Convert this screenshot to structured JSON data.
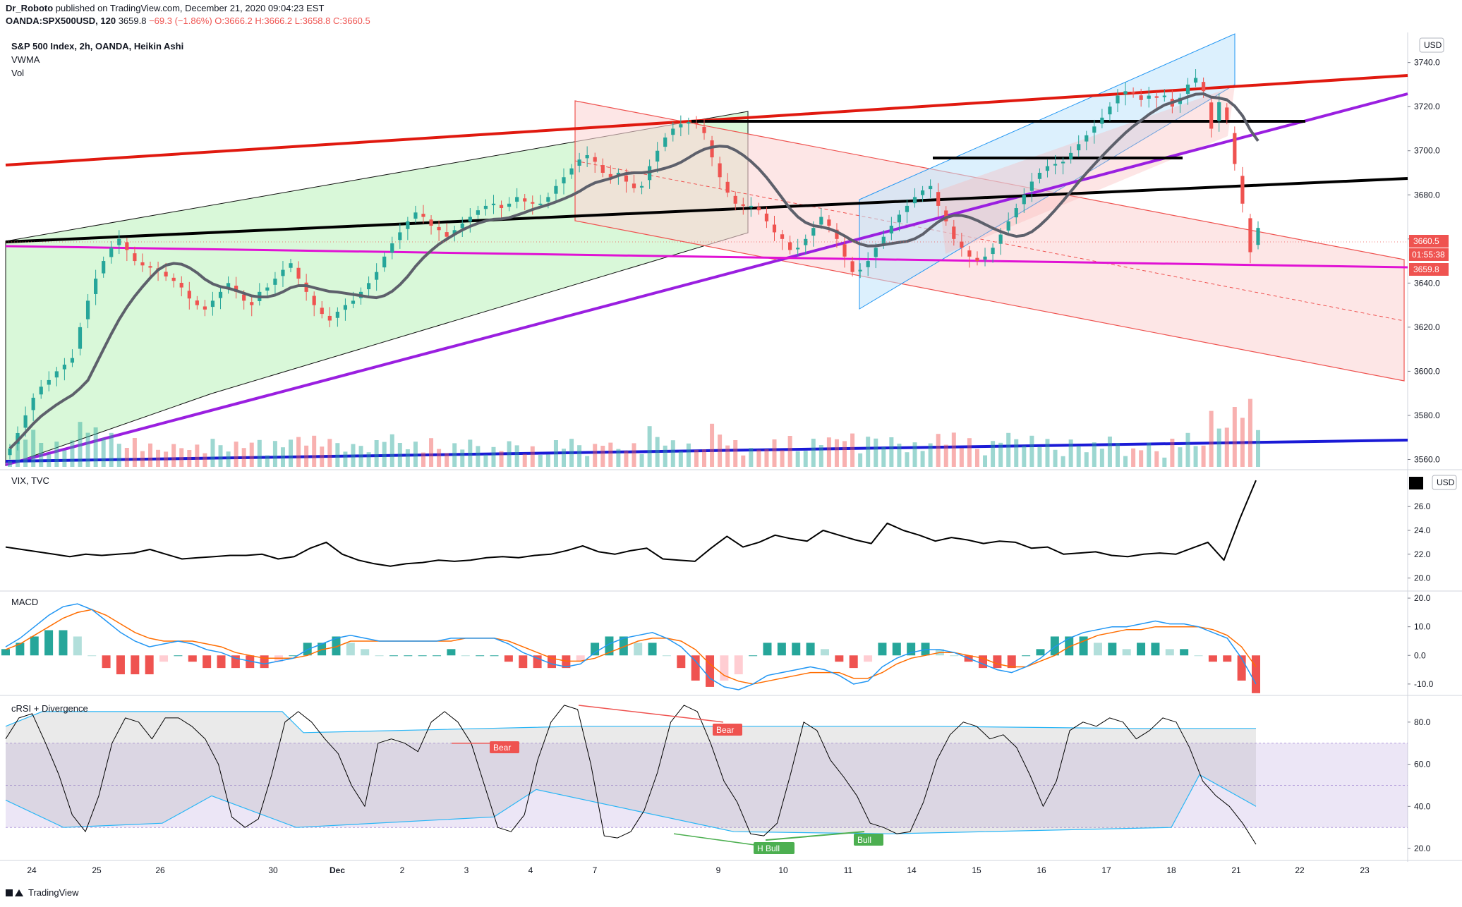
{
  "header": {
    "author": "Dr_Roboto",
    "published": "published on TradingView.com, December 21, 2020 09:04:23 EST",
    "symbol": "OANDA:SPX500USD, 120",
    "price": "3659.8",
    "ohlc": "−69.3 (−1.86%) O:3666.2 H:3666.2 L:3658.8 C:3660.5"
  },
  "main_pane": {
    "title": "S&P 500 Index, 2h, OANDA, Heikin Ashi",
    "indicator1": "VWMA",
    "indicator2": "Vol",
    "currency": "USD",
    "price_label": "3660.5",
    "countdown_label": "01:55:38",
    "level_label": "3659.8"
  },
  "vix_pane": {
    "title": "VIX, TVC",
    "currency": "USD"
  },
  "macd_pane": {
    "title": "MACD"
  },
  "crsi_pane": {
    "title": "cRSI + Divergence",
    "badges": [
      "Bear",
      "Bear",
      "H Bull",
      "Bull"
    ]
  },
  "footer": {
    "brand": "TradingView"
  },
  "colors": {
    "bull": "#26a69a",
    "bear": "#ef5350",
    "vwma": "#5d606b",
    "trend_red": "#e0190f",
    "trend_purple": "#9a1fe0",
    "trend_magenta": "#e012d4",
    "trend_blue": "#1a1ad6",
    "macd_line": "#2196f3",
    "signal_line": "#ff6d00",
    "crsi_band": "#b39ddb"
  },
  "chart_data": [
    {
      "type": "candlestick",
      "title": "S&P 500 Index, 2h, OANDA, Heikin Ashi",
      "x_ticks": [
        "24",
        "25",
        "26",
        "30",
        "Dec",
        "2",
        "3",
        "4",
        "7",
        "9",
        "10",
        "11",
        "14",
        "15",
        "16",
        "17",
        "18",
        "21",
        "22",
        "23"
      ],
      "y_ticks": [
        3560,
        3580,
        3600,
        3620,
        3640,
        3660,
        3680,
        3700,
        3720,
        3740
      ],
      "ylim": [
        3556,
        3753
      ],
      "close": [
        3565,
        3572,
        3580,
        3588,
        3593,
        3596,
        3600,
        3603,
        3606,
        3620,
        3632,
        3642,
        3650,
        3656,
        3660,
        3655,
        3650,
        3648,
        3647,
        3646,
        3643,
        3641,
        3638,
        3633,
        3630,
        3628,
        3632,
        3636,
        3640,
        3636,
        3632,
        3630,
        3636,
        3638,
        3642,
        3646,
        3649,
        3642,
        3636,
        3630,
        3626,
        3623,
        3627,
        3630,
        3632,
        3636,
        3640,
        3645,
        3652,
        3658,
        3663,
        3668,
        3672,
        3670,
        3666,
        3664,
        3661,
        3664,
        3667,
        3670,
        3673,
        3675,
        3676,
        3674,
        3676,
        3679,
        3677,
        3676,
        3676,
        3679,
        3684,
        3688,
        3692,
        3696,
        3698,
        3695,
        3690,
        3688,
        3690,
        3686,
        3683,
        3684,
        3693,
        3700,
        3706,
        3710,
        3712,
        3713,
        3712,
        3708,
        3697,
        3688,
        3681,
        3676,
        3675,
        3675,
        3673,
        3668,
        3663,
        3660,
        3655,
        3656,
        3660,
        3665,
        3670,
        3666,
        3660,
        3652,
        3645,
        3646,
        3650,
        3656,
        3661,
        3666,
        3671,
        3675,
        3679,
        3682,
        3684,
        3675,
        3668,
        3660,
        3656,
        3652,
        3650,
        3652,
        3656,
        3662,
        3668,
        3674,
        3680,
        3686,
        3690,
        3693,
        3694,
        3695,
        3699,
        3703,
        3707,
        3711,
        3715,
        3720,
        3725,
        3727,
        3726,
        3723,
        3725,
        3724,
        3725,
        3720,
        3724,
        3730,
        3733,
        3727,
        3710,
        3722,
        3714,
        3694,
        3676,
        3654,
        3665
      ],
      "series": [
        {
          "name": "VWMA"
        },
        {
          "name": "Vol"
        }
      ]
    },
    {
      "type": "line",
      "title": "VIX, TVC",
      "y_ticks": [
        20.0,
        22.0,
        24.0,
        26.0
      ],
      "ylim": [
        19.5,
        28.5
      ],
      "values": [
        22.6,
        22.4,
        22.2,
        22.0,
        21.8,
        22.0,
        21.9,
        22.0,
        22.1,
        22.4,
        22.0,
        21.6,
        21.7,
        21.8,
        21.9,
        21.9,
        22.0,
        21.6,
        21.8,
        22.5,
        23.0,
        22.0,
        21.5,
        21.2,
        21.0,
        21.2,
        21.3,
        21.5,
        21.4,
        21.5,
        21.7,
        21.8,
        21.7,
        21.9,
        22.0,
        22.3,
        22.7,
        22.2,
        22.0,
        22.3,
        22.5,
        21.6,
        21.5,
        21.4,
        22.5,
        23.5,
        22.6,
        23.0,
        23.6,
        23.3,
        23.1,
        24.0,
        23.6,
        23.2,
        22.9,
        24.6,
        24.0,
        23.6,
        23.1,
        23.4,
        23.2,
        22.9,
        23.1,
        23.0,
        22.5,
        22.6,
        22.0,
        22.1,
        22.2,
        21.9,
        21.8,
        22.0,
        22.1,
        22.0,
        22.5,
        23.0,
        21.5,
        25.0,
        28.2
      ]
    },
    {
      "type": "line",
      "title": "MACD",
      "y_ticks": [
        -10.0,
        0.0,
        10.0,
        20.0
      ],
      "ylim": [
        -12.5,
        21.0
      ],
      "series": [
        {
          "name": "MACD",
          "values": [
            3,
            6,
            10,
            14,
            17,
            18,
            16,
            12,
            8,
            5,
            3,
            4,
            5,
            4,
            2,
            1,
            -1,
            -2,
            -3,
            -2,
            -1,
            2,
            4,
            6,
            7,
            6,
            5,
            5,
            5,
            5,
            5,
            6,
            6,
            6,
            6,
            4,
            1,
            -1,
            -3,
            -4,
            -3,
            1,
            4,
            6,
            7,
            8,
            6,
            3,
            -2,
            -8,
            -11,
            -12,
            -10,
            -7,
            -6,
            -5,
            -4,
            -5,
            -7,
            -10,
            -9,
            -4,
            -1,
            1,
            2,
            2,
            1,
            -1,
            -3,
            -5,
            -6,
            -4,
            -1,
            3,
            6,
            8,
            9,
            10,
            10,
            11,
            12,
            11,
            11,
            10,
            8,
            6,
            -1,
            -10
          ]
        },
        {
          "name": "Signal",
          "values": [
            2,
            4,
            7,
            10,
            13,
            15,
            16,
            14,
            11,
            8,
            6,
            5,
            5,
            5,
            4,
            3,
            1,
            0,
            -1,
            -1,
            -1,
            0,
            2,
            3,
            5,
            5,
            5,
            5,
            5,
            5,
            5,
            5,
            6,
            6,
            6,
            5,
            3,
            1,
            -1,
            -2,
            -2,
            -1,
            1,
            3,
            5,
            6,
            6,
            5,
            2,
            -3,
            -7,
            -9,
            -10,
            -9,
            -8,
            -7,
            -6,
            -6,
            -6,
            -8,
            -8,
            -6,
            -3,
            -1,
            0,
            1,
            1,
            0,
            -1,
            -3,
            -4,
            -4,
            -2,
            0,
            3,
            5,
            7,
            8,
            9,
            9,
            10,
            10,
            10,
            10,
            9,
            7,
            3,
            -4
          ]
        }
      ]
    },
    {
      "type": "line",
      "title": "cRSI + Divergence",
      "y_ticks": [
        20.0,
        40.0,
        60.0,
        80.0
      ],
      "ylim": [
        15,
        92
      ],
      "values": [
        72,
        82,
        84,
        70,
        55,
        36,
        28,
        45,
        70,
        82,
        80,
        72,
        82,
        82,
        78,
        72,
        60,
        35,
        30,
        34,
        55,
        80,
        85,
        80,
        72,
        65,
        50,
        40,
        70,
        72,
        70,
        66,
        80,
        85,
        80,
        70,
        50,
        30,
        28,
        36,
        62,
        80,
        88,
        86,
        60,
        26,
        25,
        28,
        38,
        56,
        80,
        88,
        85,
        70,
        52,
        42,
        27,
        26,
        32,
        55,
        80,
        76,
        62,
        54,
        45,
        32,
        30,
        27,
        28,
        42,
        62,
        74,
        80,
        78,
        72,
        74,
        68,
        55,
        40,
        52,
        76,
        80,
        78,
        82,
        80,
        72,
        76,
        82,
        80,
        68,
        52,
        45,
        40,
        32,
        22
      ]
    }
  ]
}
